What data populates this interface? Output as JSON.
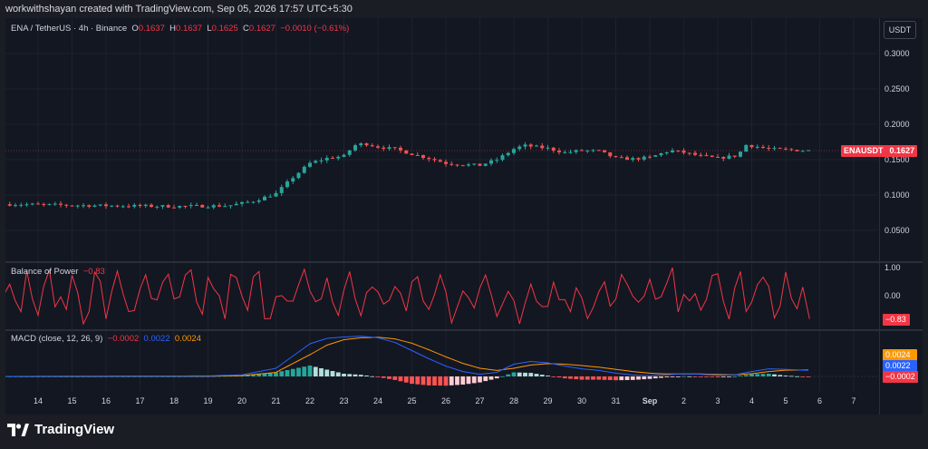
{
  "header": {
    "attribution": "workwithshayan created with TradingView.com, Sep 05, 2026 17:57 UTC+5:30"
  },
  "toolbar": {
    "currency": "USDT"
  },
  "price_pane": {
    "legend_symbol": "ENA / TetherUS · 4h · Binance",
    "o_label": "O",
    "o_value": "0.1637",
    "h_label": "H",
    "h_value": "0.1637",
    "l_label": "L",
    "l_value": "0.1625",
    "c_label": "C",
    "c_value": "0.1627",
    "change": "−0.0010 (−0.61%)",
    "y_ticks": [
      "0.3000",
      "0.2500",
      "0.2000",
      "0.1500",
      "0.1000",
      "0.0500"
    ],
    "last_symbol": "ENAUSDT",
    "last_price": "0.1627"
  },
  "bop_pane": {
    "name": "Balance of Power",
    "value": "−0.83",
    "y_ticks": [
      "1.00",
      "0.00"
    ],
    "last_value": "−0.83"
  },
  "macd_pane": {
    "name": "MACD (close, 12, 26, 9)",
    "histogram_value": "−0.0002",
    "macd_value": "0.0022",
    "signal_value": "0.0024",
    "tag_signal": "0.0024",
    "tag_macd": "0.0022",
    "tag_hist": "−0.0002"
  },
  "time_axis": [
    "14",
    "15",
    "16",
    "17",
    "18",
    "19",
    "20",
    "21",
    "22",
    "23",
    "24",
    "25",
    "26",
    "27",
    "28",
    "29",
    "30",
    "31",
    "Sep",
    "2",
    "3",
    "4",
    "5",
    "6",
    "7"
  ],
  "footer": {
    "brand": "TradingView"
  },
  "colors": {
    "up": "#26a69a",
    "down": "#ef5350",
    "bop": "#f23645",
    "macd": "#2962ff",
    "signal": "#ff9800",
    "background": "#131722"
  },
  "chart_data": {
    "type": "candlestick",
    "symbol": "ENA / TetherUS",
    "interval": "4h",
    "exchange": "Binance",
    "x_ticks": [
      "14",
      "15",
      "16",
      "17",
      "18",
      "19",
      "20",
      "21",
      "22",
      "23",
      "24",
      "25",
      "26",
      "27",
      "28",
      "29",
      "30",
      "31",
      "Sep",
      "2",
      "3",
      "4",
      "5",
      "6",
      "7"
    ],
    "ylim": [
      0.0,
      0.32
    ],
    "close_path": [
      {
        "day": 13.0,
        "close": 0.087
      },
      {
        "day": 14.0,
        "close": 0.0865
      },
      {
        "day": 15.0,
        "close": 0.0855
      },
      {
        "day": 16.0,
        "close": 0.085
      },
      {
        "day": 17.0,
        "close": 0.0845
      },
      {
        "day": 18.0,
        "close": 0.084
      },
      {
        "day": 19.0,
        "close": 0.0845
      },
      {
        "day": 19.6,
        "close": 0.085
      },
      {
        "day": 20.3,
        "close": 0.091
      },
      {
        "day": 21.0,
        "close": 0.102
      },
      {
        "day": 21.5,
        "close": 0.125
      },
      {
        "day": 22.0,
        "close": 0.145
      },
      {
        "day": 22.5,
        "close": 0.152
      },
      {
        "day": 23.0,
        "close": 0.155
      },
      {
        "day": 23.3,
        "close": 0.17
      },
      {
        "day": 23.6,
        "close": 0.173
      },
      {
        "day": 24.0,
        "close": 0.168
      },
      {
        "day": 24.5,
        "close": 0.165
      },
      {
        "day": 25.0,
        "close": 0.158
      },
      {
        "day": 25.5,
        "close": 0.152
      },
      {
        "day": 26.0,
        "close": 0.145
      },
      {
        "day": 26.5,
        "close": 0.143
      },
      {
        "day": 27.0,
        "close": 0.142
      },
      {
        "day": 27.5,
        "close": 0.15
      },
      {
        "day": 28.0,
        "close": 0.165
      },
      {
        "day": 28.3,
        "close": 0.17
      },
      {
        "day": 29.0,
        "close": 0.166
      },
      {
        "day": 29.5,
        "close": 0.16
      },
      {
        "day": 30.0,
        "close": 0.163
      },
      {
        "day": 30.5,
        "close": 0.162
      },
      {
        "day": 31.0,
        "close": 0.152
      },
      {
        "day": 31.5,
        "close": 0.151
      },
      {
        "day": 32.0,
        "close": 0.153
      },
      {
        "day": 32.6,
        "close": 0.163
      },
      {
        "day": 33.0,
        "close": 0.16
      },
      {
        "day": 33.5,
        "close": 0.155
      },
      {
        "day": 34.0,
        "close": 0.152
      },
      {
        "day": 34.6,
        "close": 0.156
      },
      {
        "day": 34.8,
        "close": 0.171
      },
      {
        "day": 35.2,
        "close": 0.168
      },
      {
        "day": 35.5,
        "close": 0.165
      },
      {
        "day": 36.0,
        "close": 0.164
      },
      {
        "day": 36.5,
        "close": 0.163
      },
      {
        "day": 36.7,
        "close": 0.1627
      }
    ],
    "bop_ylim": [
      -1.2,
      1.2
    ],
    "macd_ylim": [
      -0.005,
      0.018
    ],
    "macd_path": [
      {
        "day": 13.0,
        "macd": 0.0,
        "signal": 0.0
      },
      {
        "day": 19.0,
        "macd": 0.0002,
        "signal": 0.0001
      },
      {
        "day": 20.0,
        "macd": 0.0006,
        "signal": 0.0003
      },
      {
        "day": 21.0,
        "macd": 0.003,
        "signal": 0.0015
      },
      {
        "day": 22.0,
        "macd": 0.012,
        "signal": 0.008
      },
      {
        "day": 22.5,
        "macd": 0.014,
        "signal": 0.0115
      },
      {
        "day": 23.0,
        "macd": 0.0145,
        "signal": 0.0135
      },
      {
        "day": 23.5,
        "macd": 0.0148,
        "signal": 0.0142
      },
      {
        "day": 24.0,
        "macd": 0.0142,
        "signal": 0.0144
      },
      {
        "day": 24.5,
        "macd": 0.0125,
        "signal": 0.0138
      },
      {
        "day": 25.0,
        "macd": 0.0095,
        "signal": 0.0122
      },
      {
        "day": 25.5,
        "macd": 0.0065,
        "signal": 0.0098
      },
      {
        "day": 26.0,
        "macd": 0.0038,
        "signal": 0.0072
      },
      {
        "day": 26.5,
        "macd": 0.0018,
        "signal": 0.0048
      },
      {
        "day": 27.0,
        "macd": 0.0008,
        "signal": 0.003
      },
      {
        "day": 27.5,
        "macd": 0.0015,
        "signal": 0.0022
      },
      {
        "day": 28.0,
        "macd": 0.0045,
        "signal": 0.003
      },
      {
        "day": 28.5,
        "macd": 0.0055,
        "signal": 0.0042
      },
      {
        "day": 29.0,
        "macd": 0.005,
        "signal": 0.0047
      },
      {
        "day": 29.5,
        "macd": 0.0038,
        "signal": 0.0045
      },
      {
        "day": 30.0,
        "macd": 0.0028,
        "signal": 0.004
      },
      {
        "day": 30.5,
        "macd": 0.0022,
        "signal": 0.0034
      },
      {
        "day": 31.0,
        "macd": 0.0012,
        "signal": 0.0026
      },
      {
        "day": 31.5,
        "macd": 0.0005,
        "signal": 0.0018
      },
      {
        "day": 32.0,
        "macd": 0.0003,
        "signal": 0.0012
      },
      {
        "day": 32.5,
        "macd": 0.0006,
        "signal": 0.0009
      },
      {
        "day": 33.0,
        "macd": 0.001,
        "signal": 0.0009
      },
      {
        "day": 33.5,
        "macd": 0.0008,
        "signal": 0.0009
      },
      {
        "day": 34.0,
        "macd": 0.0004,
        "signal": 0.0007
      },
      {
        "day": 34.5,
        "macd": 0.0006,
        "signal": 0.0006
      },
      {
        "day": 35.0,
        "macd": 0.0018,
        "signal": 0.001
      },
      {
        "day": 35.5,
        "macd": 0.0028,
        "signal": 0.0018
      },
      {
        "day": 36.0,
        "macd": 0.0026,
        "signal": 0.0023
      },
      {
        "day": 36.7,
        "macd": 0.0022,
        "signal": 0.0024
      }
    ]
  }
}
